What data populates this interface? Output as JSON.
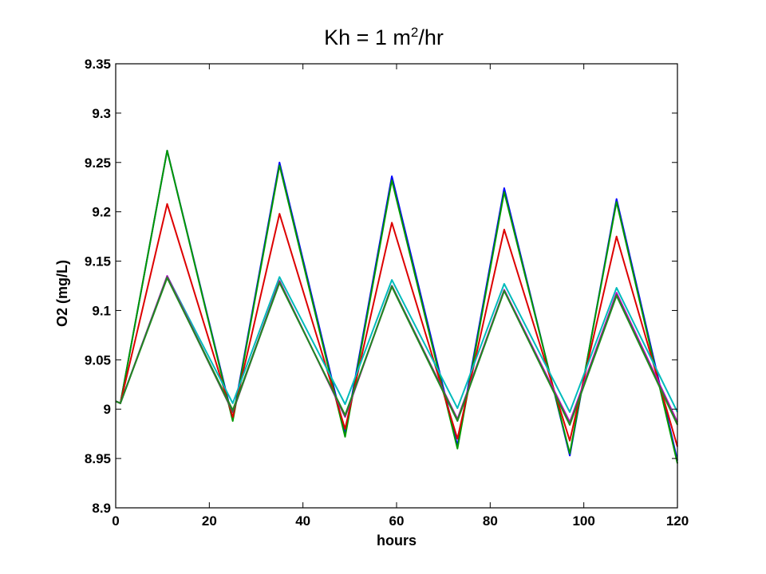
{
  "chart_data": {
    "type": "line",
    "title": {
      "prefix": "Kh = 1 m",
      "superscript": "2",
      "suffix": "/hr"
    },
    "xlabel": "hours",
    "ylabel": "O2 (mg/L)",
    "xlim": [
      0,
      120
    ],
    "ylim": [
      8.9,
      9.35
    ],
    "xticks": [
      0,
      20,
      40,
      60,
      80,
      100,
      120
    ],
    "xtick_labels": [
      "0",
      "20",
      "40",
      "60",
      "80",
      "100",
      "120"
    ],
    "yticks": [
      8.9,
      8.95,
      9.0,
      9.05,
      9.1,
      9.15,
      9.2,
      9.25,
      9.3,
      9.35
    ],
    "ytick_labels": [
      "8.9",
      "8.95",
      "9",
      "9.05",
      "9.1",
      "9.15",
      "9.2",
      "9.25",
      "9.3",
      "9.35"
    ],
    "grid": false,
    "legend": "none",
    "series": [
      {
        "color": "#0000ff",
        "x": [
          0,
          1,
          11,
          25,
          35,
          49,
          59,
          73,
          83,
          97,
          107,
          120
        ],
        "y": [
          9.008,
          9.006,
          9.262,
          8.99,
          9.25,
          8.975,
          9.236,
          8.963,
          9.224,
          8.953,
          9.213,
          8.948
        ]
      },
      {
        "color": "#009900",
        "x": [
          0,
          1,
          11,
          25,
          35,
          49,
          59,
          73,
          83,
          97,
          107,
          120
        ],
        "y": [
          9.008,
          9.006,
          9.262,
          8.988,
          9.247,
          8.972,
          9.232,
          8.96,
          9.22,
          8.955,
          9.21,
          8.945
        ]
      },
      {
        "color": "#dd0000",
        "x": [
          0,
          1,
          11,
          25,
          35,
          49,
          59,
          73,
          83,
          97,
          107,
          120
        ],
        "y": [
          9.008,
          9.006,
          9.208,
          8.992,
          9.198,
          8.98,
          9.189,
          8.97,
          9.182,
          8.968,
          9.175,
          8.962
        ]
      },
      {
        "color": "#00bbbb",
        "x": [
          0,
          1,
          11,
          25,
          35,
          49,
          59,
          73,
          83,
          97,
          107,
          120
        ],
        "y": [
          9.008,
          9.006,
          9.135,
          9.006,
          9.134,
          9.005,
          9.131,
          9.001,
          9.127,
          8.997,
          9.123,
          8.997
        ]
      },
      {
        "color": "#cc00cc",
        "x": [
          0,
          1,
          11,
          25,
          35,
          49,
          59,
          73,
          83,
          97,
          107,
          120
        ],
        "y": [
          9.008,
          9.006,
          9.135,
          8.998,
          9.13,
          8.992,
          9.125,
          8.99,
          9.121,
          8.987,
          9.118,
          8.987
        ]
      },
      {
        "color": "#555555",
        "x": [
          0,
          1,
          11,
          25,
          35,
          49,
          59,
          73,
          83,
          97,
          107,
          120
        ],
        "y": [
          9.008,
          9.006,
          9.134,
          8.997,
          9.129,
          8.993,
          9.125,
          8.989,
          9.12,
          8.985,
          9.116,
          8.985
        ]
      },
      {
        "color": "#228822",
        "x": [
          0,
          1,
          11,
          25,
          35,
          49,
          59,
          73,
          83,
          97,
          107,
          120
        ],
        "y": [
          9.008,
          9.006,
          9.133,
          8.999,
          9.128,
          8.994,
          9.124,
          8.988,
          9.12,
          8.984,
          9.115,
          8.984
        ]
      }
    ]
  }
}
